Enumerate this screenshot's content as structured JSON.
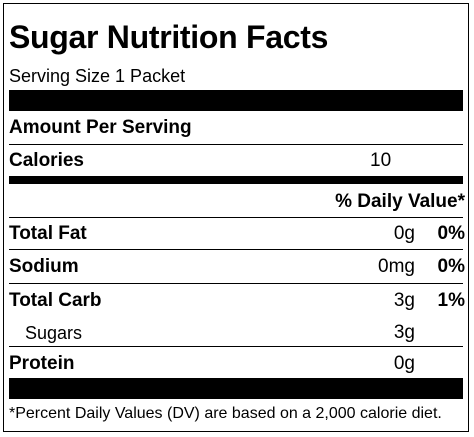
{
  "title": "Sugar Nutrition Facts",
  "serving_size": "Serving Size 1 Packet",
  "amount_per_serving": "Amount Per Serving",
  "calories": {
    "label": "Calories",
    "value": "10"
  },
  "daily_value_header": "% Daily Value*",
  "nutrients": [
    {
      "label": "Total Fat",
      "amount": "0g",
      "dv": "0%"
    },
    {
      "label": "Sodium",
      "amount": "0mg",
      "dv": "0%"
    },
    {
      "label": "Total Carb",
      "amount": "3g",
      "dv": "1%"
    },
    {
      "label": "Sugars",
      "amount": "3g",
      "dv": ""
    },
    {
      "label": "Protein",
      "amount": "0g",
      "dv": ""
    }
  ],
  "footnote": "*Percent Daily Values (DV) are based on a 2,000 calorie diet."
}
